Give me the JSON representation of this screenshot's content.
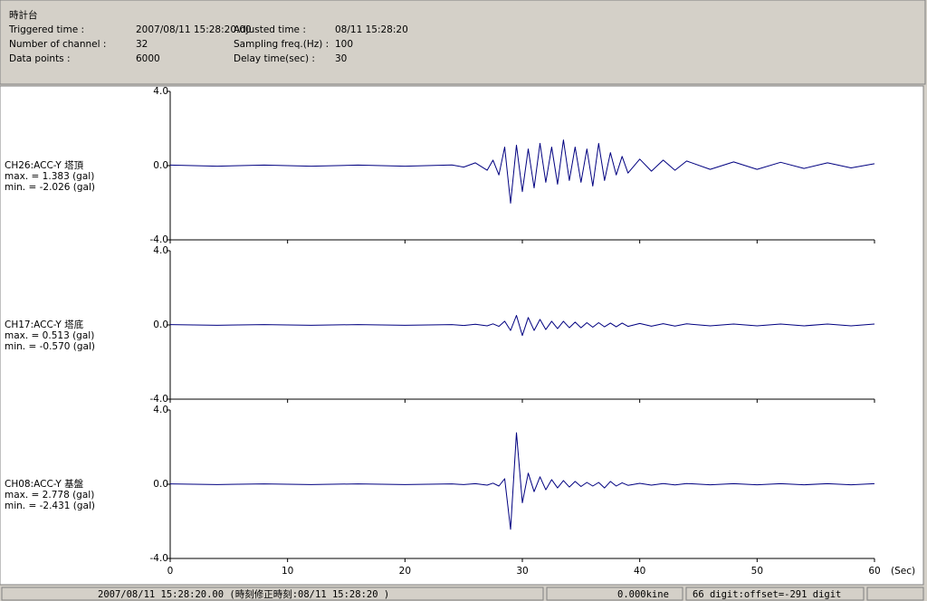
{
  "header": {
    "title": "時計台",
    "fields": [
      {
        "label": "Triggered time :",
        "value": "2007/08/11 15:28:20.00"
      },
      {
        "label": "Number of channel :",
        "value": "32"
      },
      {
        "label": "Data points :",
        "value": "6000"
      },
      {
        "label": "Adjusted time :",
        "value": "08/11 15:28:20"
      },
      {
        "label": "Sampling freq.(Hz) :",
        "value": "100"
      },
      {
        "label": "Delay time(sec) :",
        "value": "30"
      }
    ]
  },
  "chart_data": [
    {
      "type": "line",
      "channel": "CH26:ACC-Y 塔頂",
      "max_label": "max. = 1.383 (gal)",
      "min_label": "min. = -2.026 (gal)",
      "color": "#000080",
      "x": [
        0,
        4,
        8,
        12,
        16,
        20,
        24,
        25,
        26,
        27,
        27.5,
        28,
        28.5,
        29,
        29.5,
        30,
        30.5,
        31,
        31.5,
        32,
        32.5,
        33,
        33.5,
        34,
        34.5,
        35,
        35.5,
        36,
        36.5,
        37,
        37.5,
        38,
        38.5,
        39,
        40,
        41,
        42,
        43,
        44,
        46,
        48,
        50,
        52,
        54,
        56,
        58,
        60
      ],
      "values": [
        0.03,
        -0.03,
        0.03,
        -0.03,
        0.03,
        -0.03,
        0.04,
        -0.08,
        0.15,
        -0.25,
        0.3,
        -0.5,
        1.0,
        -2.026,
        1.1,
        -1.4,
        0.9,
        -1.2,
        1.2,
        -0.9,
        1.0,
        -1.0,
        1.383,
        -0.8,
        1.0,
        -0.9,
        0.9,
        -1.1,
        1.2,
        -0.8,
        0.7,
        -0.5,
        0.5,
        -0.4,
        0.35,
        -0.3,
        0.3,
        -0.25,
        0.25,
        -0.2,
        0.2,
        -0.2,
        0.18,
        -0.15,
        0.15,
        -0.12,
        0.1
      ],
      "xlim": [
        0,
        60
      ],
      "ylim": [
        -4,
        4
      ],
      "xticks": [
        0,
        10,
        20,
        30,
        40,
        50,
        60
      ],
      "show_xtick_labels": false,
      "yticks": [
        {
          "value": -4,
          "label": "-4.0"
        },
        {
          "value": 0,
          "label": "0.0"
        },
        {
          "value": 4,
          "label": "4.0"
        }
      ]
    },
    {
      "type": "line",
      "channel": "CH17:ACC-Y 塔底",
      "max_label": "max. = 0.513 (gal)",
      "min_label": "min. = -0.570 (gal)",
      "color": "#000080",
      "x": [
        0,
        4,
        8,
        12,
        16,
        20,
        24,
        25,
        26,
        27,
        27.5,
        28,
        28.5,
        29,
        29.5,
        30,
        30.5,
        31,
        31.5,
        32,
        32.5,
        33,
        33.5,
        34,
        34.5,
        35,
        35.5,
        36,
        36.5,
        37,
        37.5,
        38,
        38.5,
        39,
        40,
        41,
        42,
        43,
        44,
        46,
        48,
        50,
        52,
        54,
        56,
        58,
        60
      ],
      "values": [
        0.02,
        -0.02,
        0.02,
        -0.02,
        0.02,
        -0.02,
        0.02,
        -0.03,
        0.04,
        -0.05,
        0.06,
        -0.08,
        0.2,
        -0.3,
        0.513,
        -0.57,
        0.4,
        -0.3,
        0.3,
        -0.25,
        0.2,
        -0.2,
        0.2,
        -0.15,
        0.15,
        -0.15,
        0.12,
        -0.12,
        0.12,
        -0.1,
        0.1,
        -0.1,
        0.1,
        -0.08,
        0.08,
        -0.07,
        0.07,
        -0.06,
        0.06,
        -0.05,
        0.05,
        -0.05,
        0.05,
        -0.05,
        0.05,
        -0.05,
        0.05
      ],
      "xlim": [
        0,
        60
      ],
      "ylim": [
        -4,
        4
      ],
      "xticks": [
        0,
        10,
        20,
        30,
        40,
        50,
        60
      ],
      "show_xtick_labels": false,
      "yticks": [
        {
          "value": -4,
          "label": "-4.0"
        },
        {
          "value": 0,
          "label": "0.0"
        },
        {
          "value": 4,
          "label": "4.0"
        }
      ]
    },
    {
      "type": "line",
      "channel": "CH08:ACC-Y 基盤",
      "max_label": "max. = 2.778 (gal)",
      "min_label": "min. = -2.431 (gal)",
      "color": "#000080",
      "x": [
        0,
        4,
        8,
        12,
        16,
        20,
        24,
        25,
        26,
        27,
        27.5,
        28,
        28.5,
        29,
        29.5,
        30,
        30.5,
        31,
        31.5,
        32,
        32.5,
        33,
        33.5,
        34,
        34.5,
        35,
        35.5,
        36,
        36.5,
        37,
        37.5,
        38,
        38.5,
        39,
        40,
        41,
        42,
        43,
        44,
        46,
        48,
        50,
        52,
        54,
        56,
        58,
        60
      ],
      "values": [
        0.02,
        -0.02,
        0.02,
        -0.02,
        0.02,
        -0.02,
        0.02,
        -0.02,
        0.03,
        -0.05,
        0.06,
        -0.1,
        0.3,
        -2.431,
        2.778,
        -1.0,
        0.6,
        -0.4,
        0.4,
        -0.3,
        0.25,
        -0.2,
        0.2,
        -0.15,
        0.15,
        -0.12,
        0.1,
        -0.1,
        0.1,
        -0.2,
        0.15,
        -0.1,
        0.08,
        -0.06,
        0.05,
        -0.05,
        0.04,
        -0.04,
        0.04,
        -0.03,
        0.03,
        -0.03,
        0.03,
        -0.03,
        0.03,
        -0.03,
        0.03
      ],
      "xlim": [
        0,
        60
      ],
      "ylim": [
        -4,
        4
      ],
      "xticks": [
        0,
        10,
        20,
        30,
        40,
        50,
        60
      ],
      "show_xtick_labels": true,
      "xlabel": "(Sec)",
      "yticks": [
        {
          "value": -4,
          "label": "-4.0"
        },
        {
          "value": 0,
          "label": "0.0"
        },
        {
          "value": 4,
          "label": "4.0"
        }
      ]
    }
  ],
  "status_bar": {
    "time": "2007/08/11 15:28:20.00  (時刻修正時刻:08/11 15:28:20  )",
    "velocity": "0.000kine",
    "digit": "66 digit:offset=-291 digit"
  }
}
